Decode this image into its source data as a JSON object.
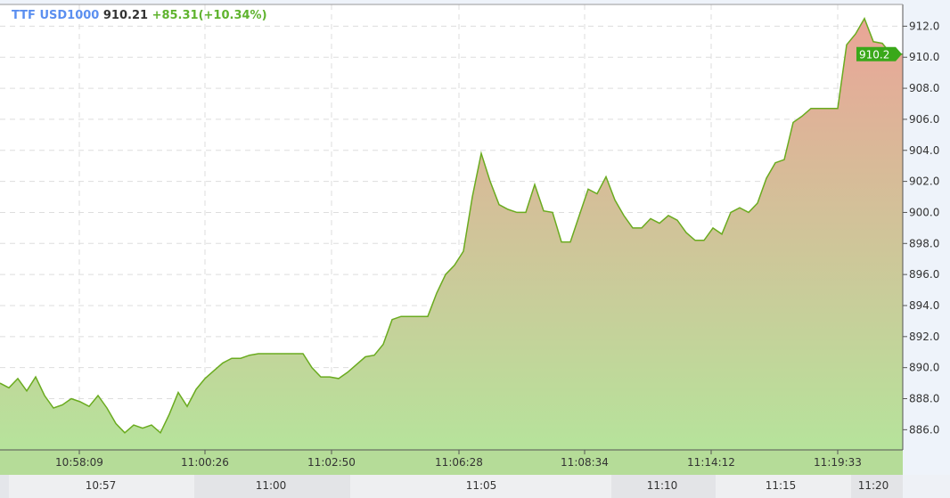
{
  "header": {
    "symbol": "TTF USD1000",
    "last": "910.21",
    "change": "+85.31(+10.34%)"
  },
  "colors": {
    "line": "#6aab1f",
    "fill_top": "#eaa597",
    "fill_bottom": "#b6e39b",
    "price_tag": "#3aa81a",
    "axis_band": "#b5dc98"
  },
  "chart_data": {
    "type": "area",
    "title": "",
    "ylim": [
      884.7,
      913.4
    ],
    "y_ticks": [
      "886.0",
      "888.0",
      "890.0",
      "892.0",
      "894.0",
      "896.0",
      "898.0",
      "900.0",
      "902.0",
      "904.0",
      "906.0",
      "908.0",
      "910.0",
      "912.0"
    ],
    "x_ticks": [
      {
        "index": 8.9,
        "label": "10:58:09"
      },
      {
        "index": 23.0,
        "label": "11:00:26"
      },
      {
        "index": 37.2,
        "label": "11:02:50"
      },
      {
        "index": 51.5,
        "label": "11:06:28"
      },
      {
        "index": 65.6,
        "label": "11:08:34"
      },
      {
        "index": 79.8,
        "label": "11:14:12"
      },
      {
        "index": 94.0,
        "label": "11:19:33"
      }
    ],
    "time_band_labels": [
      "10:57",
      "11:00",
      "11:05",
      "11:10",
      "11:15",
      "11:20"
    ],
    "current_price_label": "910.2",
    "grid": true,
    "values": [
      889.0,
      888.7,
      889.3,
      888.5,
      889.4,
      888.2,
      887.4,
      887.6,
      888.0,
      887.8,
      887.5,
      888.2,
      887.4,
      886.4,
      885.8,
      886.3,
      886.1,
      886.3,
      885.8,
      887.0,
      888.4,
      887.5,
      888.6,
      889.3,
      889.8,
      890.3,
      890.6,
      890.6,
      890.8,
      890.9,
      890.9,
      890.9,
      890.9,
      890.9,
      890.9,
      890.0,
      889.4,
      889.4,
      889.3,
      889.7,
      890.2,
      890.7,
      890.8,
      891.5,
      893.1,
      893.3,
      893.3,
      893.3,
      893.3,
      894.8,
      896.0,
      896.6,
      897.5,
      901.0,
      903.8,
      902.0,
      900.5,
      900.2,
      900.0,
      900.0,
      901.8,
      900.1,
      900.0,
      898.1,
      898.1,
      899.8,
      901.5,
      901.2,
      902.3,
      900.8,
      899.8,
      899.0,
      899.0,
      899.6,
      899.3,
      899.8,
      899.5,
      898.7,
      898.2,
      898.2,
      899.0,
      898.6,
      900.0,
      900.3,
      900.0,
      900.6,
      902.2,
      903.2,
      903.4,
      905.8,
      906.2,
      906.7,
      906.7,
      906.7,
      906.7,
      910.8,
      911.5,
      912.5,
      911.0,
      910.9,
      910.2,
      910.2
    ]
  }
}
